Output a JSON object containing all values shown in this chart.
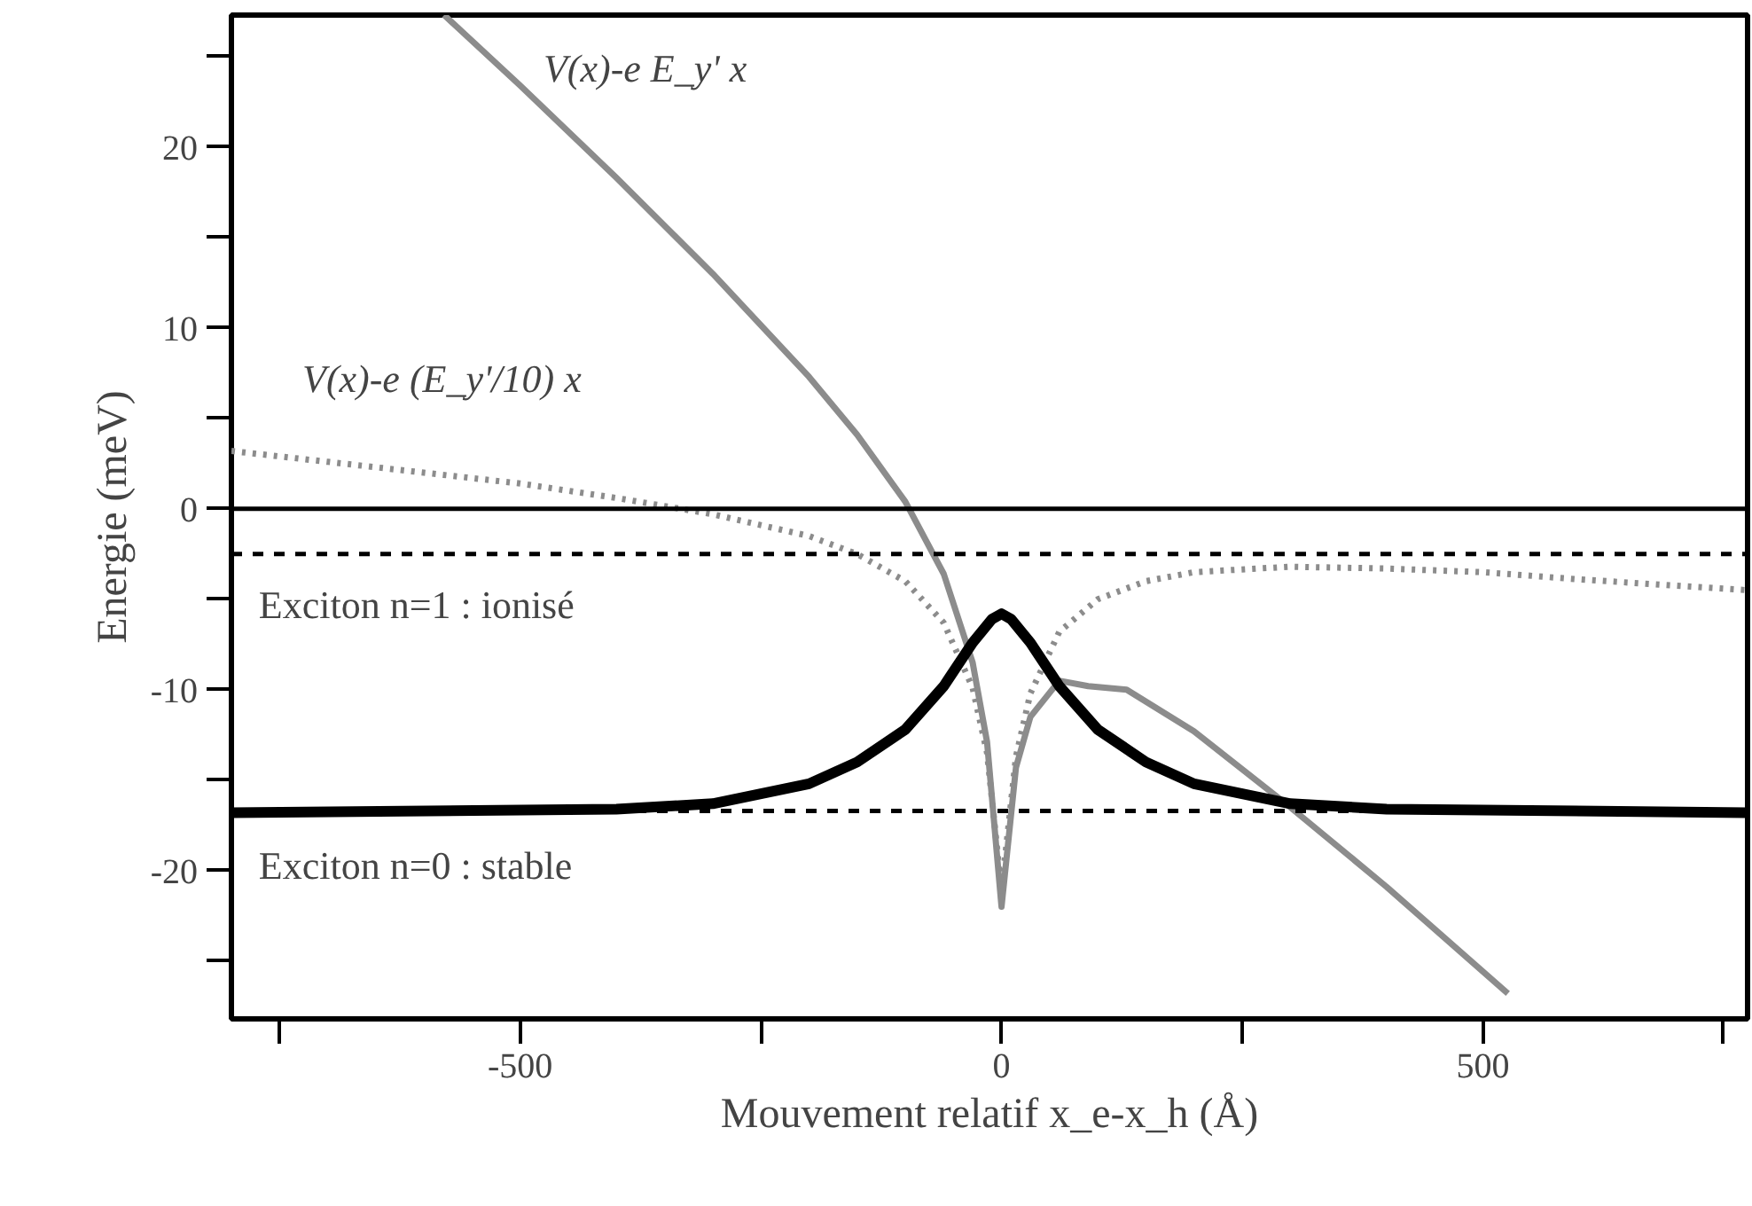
{
  "chart_data": {
    "type": "line",
    "xlabel": "Mouvement relatif x_e-x_h (Å)",
    "ylabel": "Energie (meV)",
    "xlim": [
      -800,
      775
    ],
    "ylim": [
      -28.2,
      27.3
    ],
    "xticks": [
      {
        "value": -750,
        "label": null
      },
      -500,
      {
        "value": -250,
        "label": null
      },
      0,
      {
        "value": 250,
        "label": null
      },
      500,
      {
        "value": 750,
        "label": null
      }
    ],
    "yticks": [
      {
        "value": -25,
        "label": null
      },
      -20,
      {
        "value": -15,
        "label": null
      },
      -10,
      {
        "value": -5,
        "label": null
      },
      0,
      {
        "value": 5,
        "label": null
      },
      10,
      {
        "value": 15,
        "label": null
      },
      20,
      {
        "value": 25,
        "label": null
      }
    ],
    "grid": false,
    "series": [
      {
        "name": "V(x)-e E_y' x",
        "color": "#8c8c8c",
        "line_style": "solid",
        "x": [
          -579,
          -500,
          -400,
          -300,
          -200,
          -150,
          -100,
          -60,
          -30,
          -15,
          0,
          15,
          30,
          60,
          90,
          130,
          200,
          300,
          400,
          526
        ],
        "values": [
          27.3,
          23.4,
          18.3,
          13.0,
          7.3,
          4.1,
          0.4,
          -3.6,
          -8.5,
          -12.9,
          -22,
          -14.3,
          -11.5,
          -9.5,
          -9.8,
          -10.0,
          -12.3,
          -16.5,
          -20.9,
          -26.8
        ]
      },
      {
        "name": "V(x)-e (E_y'/10) x",
        "color": "#8c8c8c",
        "line_style": "dotted",
        "x": [
          -800,
          -700,
          -600,
          -500,
          -400,
          -300,
          -200,
          -150,
          -100,
          -60,
          -30,
          -15,
          0,
          15,
          30,
          60,
          100,
          150,
          200,
          300,
          400,
          500,
          600,
          775
        ],
        "values": [
          3.2,
          2.6,
          2.0,
          1.4,
          0.6,
          -0.3,
          -1.5,
          -2.5,
          -4.0,
          -6.3,
          -9.9,
          -13.5,
          -21.1,
          -13.7,
          -10.2,
          -6.8,
          -5.0,
          -4.0,
          -3.5,
          -3.2,
          -3.3,
          -3.5,
          -3.9,
          -4.5
        ]
      },
      {
        "color": "#000000",
        "line_style": "solid",
        "x": [
          -800,
          -400,
          -300,
          -200,
          -150,
          -100,
          -60,
          -30,
          -10,
          0,
          10,
          30,
          60,
          100,
          150,
          200,
          300,
          400,
          775
        ],
        "values": [
          -16.8,
          -16.6,
          -16.3,
          -15.2,
          -14.0,
          -12.2,
          -9.8,
          -7.4,
          -6.1,
          -5.8,
          -6.1,
          -7.4,
          -9.8,
          -12.2,
          -14.0,
          -15.2,
          -16.3,
          -16.6,
          -16.8
        ]
      }
    ],
    "ref_lines": [
      {
        "axis": "y",
        "value": 0,
        "color": "#000000",
        "line_style": "solid"
      },
      {
        "axis": "y",
        "value": -2.5,
        "color": "#000000",
        "line_style": "dashed"
      },
      {
        "axis": "y",
        "value": -16.7,
        "color": "#000000",
        "line_style": "dashed"
      }
    ],
    "annotations": [
      "Exciton n=1 : ionisé",
      "Exciton n=0 : stable"
    ]
  }
}
